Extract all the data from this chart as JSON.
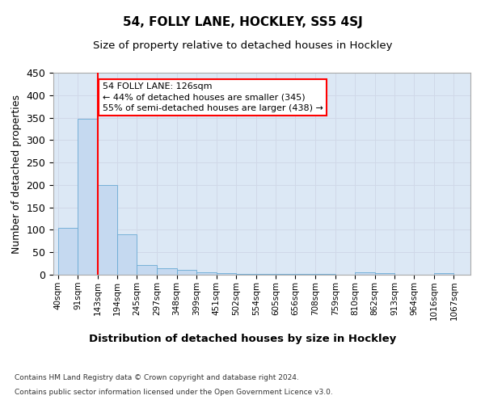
{
  "title1": "54, FOLLY LANE, HOCKLEY, SS5 4SJ",
  "title2": "Size of property relative to detached houses in Hockley",
  "xlabel": "Distribution of detached houses by size in Hockley",
  "ylabel": "Number of detached properties",
  "bar_left_edges": [
    40,
    91,
    143,
    194,
    245,
    297,
    348,
    399,
    451,
    502,
    554,
    605,
    656,
    708,
    759,
    810,
    862,
    913,
    964,
    1016
  ],
  "bar_heights": [
    105,
    348,
    200,
    90,
    22,
    15,
    10,
    5,
    3,
    2,
    1,
    1,
    1,
    1,
    0,
    6,
    4,
    0,
    0,
    4
  ],
  "bar_widths": [
    51,
    52,
    51,
    51,
    52,
    51,
    51,
    52,
    51,
    52,
    51,
    51,
    52,
    51,
    51,
    52,
    51,
    51,
    52,
    51
  ],
  "bar_color": "#c5d9f0",
  "bar_edge_color": "#6aaad4",
  "tick_labels": [
    "40sqm",
    "91sqm",
    "143sqm",
    "194sqm",
    "245sqm",
    "297sqm",
    "348sqm",
    "399sqm",
    "451sqm",
    "502sqm",
    "554sqm",
    "605sqm",
    "656sqm",
    "708sqm",
    "759sqm",
    "810sqm",
    "862sqm",
    "913sqm",
    "964sqm",
    "1016sqm",
    "1067sqm"
  ],
  "tick_positions": [
    40,
    91,
    143,
    194,
    245,
    297,
    348,
    399,
    451,
    502,
    554,
    605,
    656,
    708,
    759,
    810,
    862,
    913,
    964,
    1016,
    1067
  ],
  "ylim": [
    0,
    450
  ],
  "xlim": [
    28,
    1110
  ],
  "red_line_x": 143,
  "annotation_line1": "54 FOLLY LANE: 126sqm",
  "annotation_line2": "← 44% of detached houses are smaller (345)",
  "annotation_line3": "55% of semi-detached houses are larger (438) →",
  "grid_color": "#d0d8e8",
  "background_color": "#dce8f5",
  "footer1": "Contains HM Land Registry data © Crown copyright and database right 2024.",
  "footer2": "Contains public sector information licensed under the Open Government Licence v3.0.",
  "title1_fontsize": 11,
  "title2_fontsize": 9.5,
  "ylabel_fontsize": 9,
  "xlabel_fontsize": 9.5,
  "tick_fontsize": 7.5,
  "annotation_fontsize": 8,
  "footer_fontsize": 6.5,
  "yticks": [
    0,
    50,
    100,
    150,
    200,
    250,
    300,
    350,
    400,
    450
  ]
}
